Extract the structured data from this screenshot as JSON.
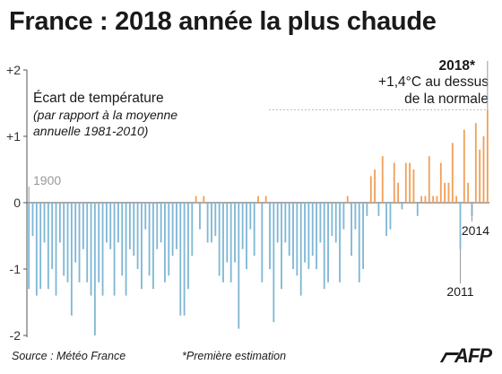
{
  "title": "France : 2018 année la plus chaude",
  "footer": {
    "source": "Source : Météo France",
    "note": "*Première estimation",
    "logo": "AFP"
  },
  "colors": {
    "negative": "#7fb7d4",
    "positive": "#f0a05a",
    "axis": "#555555",
    "ref_line": "#bbbbbb"
  },
  "chart_data": {
    "type": "bar",
    "x_start": 1900,
    "x_end": 2018,
    "ylim": [
      -2,
      2
    ],
    "yticks": [
      {
        "value": 2,
        "label": "+2"
      },
      {
        "value": 1,
        "label": "+1"
      },
      {
        "value": 0,
        "label": "0"
      },
      {
        "value": -1,
        "label": "-1"
      },
      {
        "value": -2,
        "label": "-2"
      }
    ],
    "ylabel": "Écart de température",
    "ylabel_sub": [
      "(par rapport à la moyenne",
      "annuelle 1981-2010)"
    ],
    "values": [
      -1.3,
      -0.5,
      -1.4,
      -1.3,
      -0.6,
      -1.3,
      -1.0,
      -1.4,
      -0.6,
      -1.1,
      -1.2,
      -1.7,
      -0.9,
      -1.2,
      -0.7,
      -1.2,
      -1.4,
      -2.0,
      -1.2,
      -1.4,
      -0.6,
      -0.7,
      -1.4,
      -0.6,
      -1.1,
      -1.4,
      -0.7,
      -0.8,
      -1.0,
      -1.3,
      -0.4,
      -1.1,
      -1.3,
      -0.7,
      -0.6,
      -1.2,
      -1.1,
      -0.8,
      -0.7,
      -1.7,
      -1.7,
      -1.3,
      -0.8,
      0.1,
      -0.4,
      0.1,
      -0.6,
      -0.6,
      -0.5,
      -1.1,
      -1.2,
      -0.9,
      -1.2,
      -0.9,
      -1.9,
      -0.7,
      -1.0,
      -0.4,
      -0.8,
      0.1,
      -1.2,
      0.1,
      -1.0,
      -1.8,
      -0.6,
      -1.3,
      -0.6,
      -0.8,
      -1.0,
      -1.1,
      -1.4,
      -0.9,
      -1.0,
      -0.8,
      -1.0,
      -0.6,
      -1.3,
      -1.2,
      -0.5,
      -0.6,
      -1.2,
      -0.4,
      0.1,
      -0.8,
      -0.4,
      -1.2,
      -1.0,
      -0.2,
      0.4,
      0.5,
      -0.2,
      0.7,
      -0.5,
      -0.4,
      0.6,
      0.3,
      -0.1,
      0.6,
      0.6,
      0.5,
      -0.2,
      0.1,
      0.1,
      0.7,
      0.1,
      0.1,
      0.6,
      0.3,
      0.3,
      0.9,
      0.1,
      -0.7,
      1.1,
      0.3,
      -0.2,
      1.2,
      0.8,
      1.0,
      1.4
    ],
    "annotations": {
      "start_year": "1900",
      "highlight_year": "2018*",
      "highlight_text": [
        "+1,4°C au dessus",
        "de la normale"
      ],
      "year_2011": "2011",
      "year_2014": "2014"
    }
  }
}
